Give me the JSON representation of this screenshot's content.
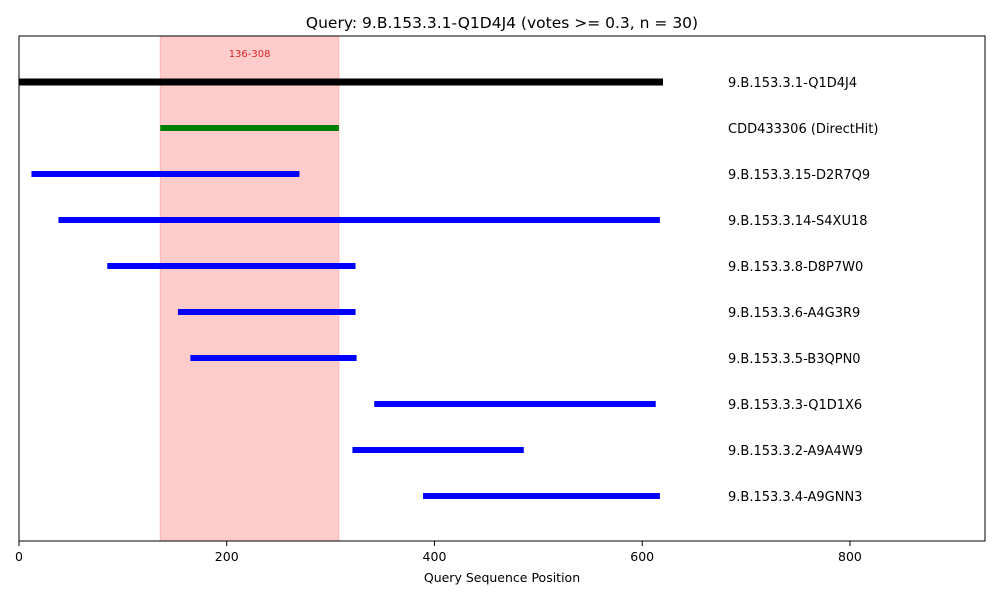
{
  "chart_data": {
    "type": "bar",
    "orientation": "horizontal-range",
    "title": "Query: 9.B.153.3.1-Q1D4J4 (votes >= 0.3, n = 30)",
    "xlabel": "Query Sequence Position",
    "ylabel": "",
    "xlim": [
      0,
      930
    ],
    "xticks": [
      0,
      200,
      400,
      600,
      800
    ],
    "grid": false,
    "highlight_region": {
      "start": 136,
      "end": 308,
      "label": "136-308",
      "color": "#ff9999",
      "label_color": "#d62728"
    },
    "tracks": [
      {
        "label": "9.B.153.3.1-Q1D4J4",
        "start": 0,
        "end": 620,
        "color": "#000000"
      },
      {
        "label": "CDD433306 (DirectHit)",
        "start": 136,
        "end": 308,
        "color": "#008000"
      },
      {
        "label": "9.B.153.3.15-D2R7Q9",
        "start": 12,
        "end": 270,
        "color": "#0000ff"
      },
      {
        "label": "9.B.153.3.14-S4XU18",
        "start": 38,
        "end": 617,
        "color": "#0000ff"
      },
      {
        "label": "9.B.153.3.8-D8P7W0",
        "start": 85,
        "end": 324,
        "color": "#0000ff"
      },
      {
        "label": "9.B.153.3.6-A4G3R9",
        "start": 153,
        "end": 324,
        "color": "#0000ff"
      },
      {
        "label": "9.B.153.3.5-B3QPN0",
        "start": 165,
        "end": 325,
        "color": "#0000ff"
      },
      {
        "label": "9.B.153.3.3-Q1D1X6",
        "start": 342,
        "end": 613,
        "color": "#0000ff"
      },
      {
        "label": "9.B.153.3.2-A9A4W9",
        "start": 321,
        "end": 486,
        "color": "#0000ff"
      },
      {
        "label": "9.B.153.3.4-A9GNN3",
        "start": 389,
        "end": 617,
        "color": "#0000ff"
      }
    ]
  }
}
